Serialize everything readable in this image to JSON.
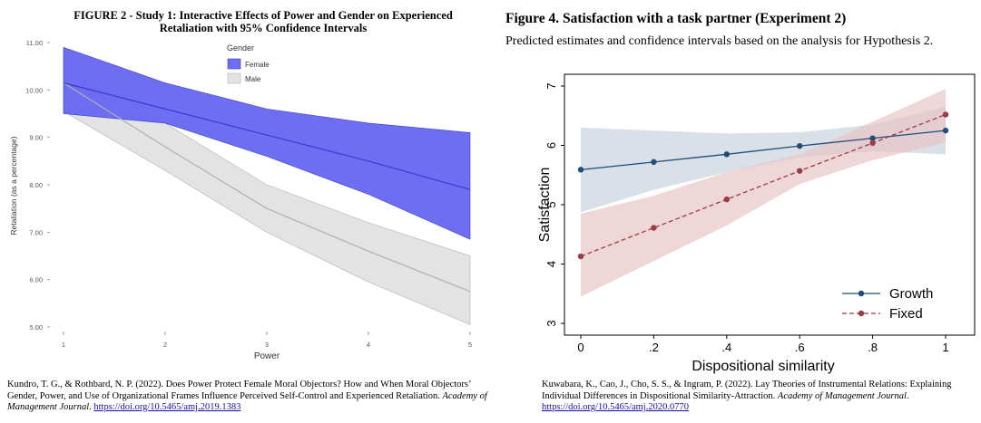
{
  "left": {
    "title_line1": "FIGURE 2 - Study 1: Interactive Effects of Power and Gender on Experienced",
    "title_line2": "Retaliation with 95% Confidence Intervals",
    "citation_main": "Kundro, T. G., & Rothbard, N. P. (2022). Does Power Protect Female  Moral Objectors? How and When Moral Objectors’ Gender, Power, and Use of Organizational Frames Influence Perceived Self-Control and Experienced  Retaliation. ",
    "citation_journal": "Academy of Management Journal",
    "citation_sep": ". ",
    "citation_link": "https://doi.org/10.5465/amj.2019.1383"
  },
  "right": {
    "title": "Figure 4. Satisfaction with a task partner (Experiment 2)",
    "subtitle": "Predicted estimates and confidence intervals based on the analysis for Hypothesis 2.",
    "citation_main": "Kuwabara, K., Cao, J., Cho, S. S., & Ingram, P. (2022). Lay Theories of Instrumental Relations: Explaining  Individual Differences in Dispositional Similarity-Attraction. ",
    "citation_journal": "Academy of Management Journal",
    "citation_sep": ". ",
    "citation_link": "https://doi.org/10.5465/amj.2020.0770"
  },
  "colors": {
    "female_fill": "#6666f2",
    "female_line": "#3a3ad0",
    "male_fill": "#d9d9d9",
    "male_line": "#b0b0b0",
    "growth": "#1f4e79",
    "growth_ci": "#c9d3de",
    "fixed": "#9e3a46",
    "fixed_ci": "#e8c4c6"
  },
  "chart_data": [
    {
      "type": "line",
      "xlabel": "Power",
      "ylabel": "Retaliation (as a percentage)",
      "x": [
        1,
        2,
        3,
        4,
        5
      ],
      "x_ticks": [
        "1",
        "2",
        "3",
        "4",
        "5"
      ],
      "y_ticks": [
        "5.00",
        "6.00",
        "7.00",
        "8.00",
        "9.00",
        "10.00",
        "11.00"
      ],
      "xlim": [
        1,
        5
      ],
      "ylim": [
        4.9,
        11.1
      ],
      "legend_title": "Gender",
      "legend_position": "top-center",
      "series": [
        {
          "name": "Female",
          "values": [
            10.15,
            9.6,
            9.05,
            8.5,
            7.9
          ],
          "lower": [
            9.5,
            9.3,
            8.6,
            7.8,
            6.85
          ],
          "upper": [
            10.9,
            10.15,
            9.6,
            9.3,
            9.1
          ]
        },
        {
          "name": "Male",
          "values": [
            10.15,
            8.8,
            7.5,
            6.6,
            5.75
          ],
          "lower": [
            9.55,
            8.3,
            7.0,
            5.95,
            5.05
          ],
          "upper": [
            10.8,
            9.3,
            8.0,
            7.2,
            6.5
          ]
        }
      ]
    },
    {
      "type": "line",
      "xlabel": "Dispositional similarity",
      "ylabel": "Satisfaction",
      "x": [
        0,
        0.2,
        0.4,
        0.6,
        0.8,
        1
      ],
      "x_ticks": [
        "0",
        ".2",
        ".4",
        ".6",
        ".8",
        "1"
      ],
      "y_ticks": [
        "3",
        "4",
        "5",
        "6",
        "7"
      ],
      "xlim": [
        0,
        1
      ],
      "ylim": [
        2.9,
        7.1
      ],
      "legend_position": "bottom-right",
      "grid": false,
      "series": [
        {
          "name": "Growth",
          "style": "solid",
          "values": [
            5.59,
            5.72,
            5.85,
            5.99,
            6.12,
            6.25
          ],
          "lower": [
            4.87,
            5.25,
            5.55,
            5.8,
            5.9,
            5.85
          ],
          "upper": [
            6.3,
            6.25,
            6.2,
            6.22,
            6.35,
            6.65
          ]
        },
        {
          "name": "Fixed",
          "style": "dashed",
          "values": [
            4.13,
            4.61,
            5.09,
            5.57,
            6.04,
            6.52
          ],
          "lower": [
            3.45,
            4.05,
            4.65,
            5.35,
            5.75,
            6.05
          ],
          "upper": [
            4.85,
            5.15,
            5.55,
            5.85,
            6.4,
            6.95
          ]
        }
      ]
    }
  ]
}
